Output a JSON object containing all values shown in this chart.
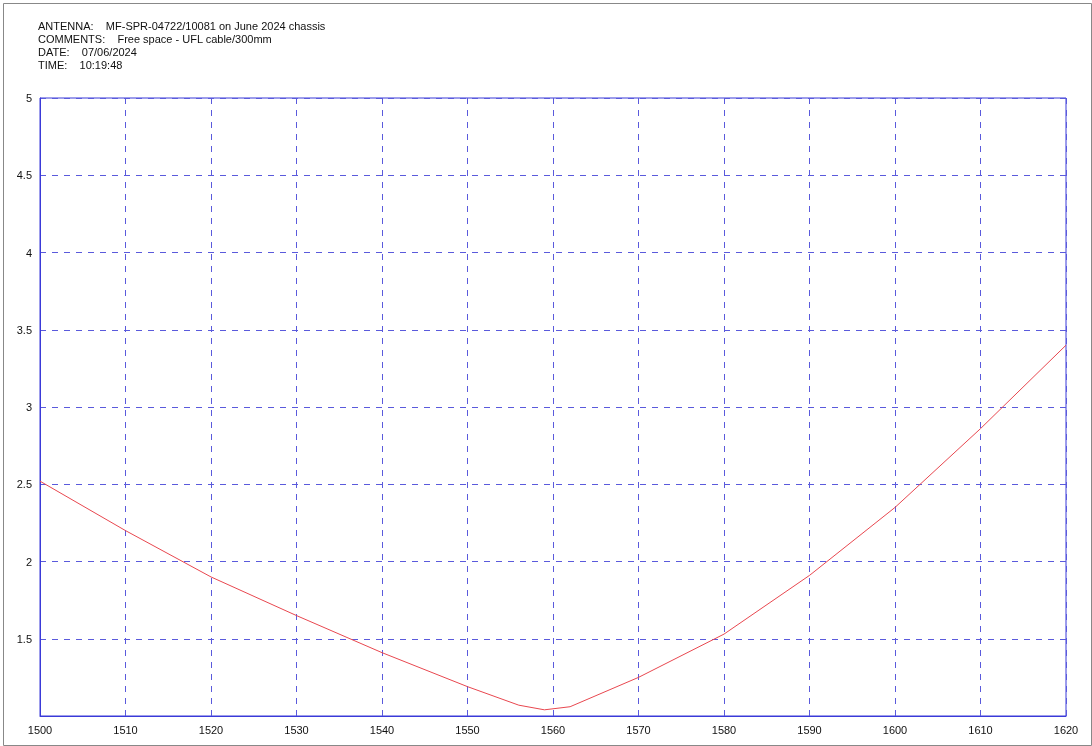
{
  "chart_data": {
    "type": "line",
    "annotations": [
      "ANTENNA:    MF-SPR-04722/10081 on June 2024 chassis",
      "COMMENTS:    Free space - UFL cable/300mm",
      "DATE:    07/06/2024",
      "TIME:    10:19:48"
    ],
    "x": [
      1500,
      1510,
      1520,
      1530,
      1540,
      1550,
      1556,
      1559,
      1562,
      1570,
      1580,
      1590,
      1600,
      1610,
      1620
    ],
    "series": [
      {
        "color": "#e8474f",
        "values": [
          2.52,
          2.2,
          1.9,
          1.65,
          1.41,
          1.19,
          1.07,
          1.04,
          1.06,
          1.25,
          1.53,
          1.91,
          2.35,
          2.86,
          3.4
        ]
      }
    ],
    "xlim": [
      1500,
      1620
    ],
    "xticks": [
      1500,
      1510,
      1520,
      1530,
      1540,
      1550,
      1560,
      1570,
      1580,
      1590,
      1600,
      1610,
      1620
    ],
    "ylim": [
      1,
      5
    ],
    "yticks": [
      {
        "value": 1,
        "label": null
      },
      1.5,
      2,
      2.5,
      3,
      3.5,
      4,
      4.5,
      5
    ],
    "grid": true,
    "marker": "none",
    "line_style": "solid"
  }
}
